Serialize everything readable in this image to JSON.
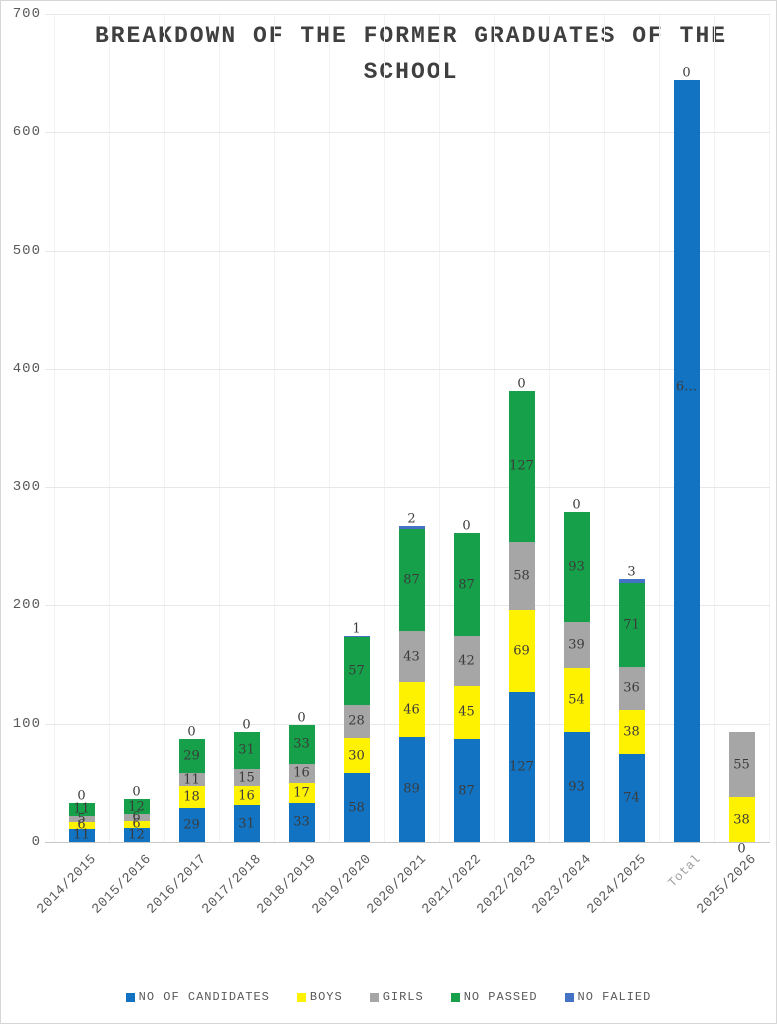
{
  "chart_data": {
    "type": "bar",
    "stacked": true,
    "title": "BREAKDOWN OF THE FORMER GRADUATES OF THE SCHOOL",
    "categories": [
      "2014/2015",
      "2015/2016",
      "2016/2017",
      "2017/2018",
      "2018/2019",
      "2019/2020",
      "2020/2021",
      "2021/2022",
      "2022/2023",
      "2023/2024",
      "2024/2025",
      "Total",
      "2025/2026"
    ],
    "series": [
      {
        "name": "NO OF CANDIDATES",
        "color": "#1173c2",
        "values": [
          11,
          12,
          29,
          31,
          33,
          58,
          89,
          87,
          127,
          93,
          74,
          644,
          0
        ],
        "labels": [
          "11",
          "12",
          "29",
          "31",
          "33",
          "58",
          "89",
          "87",
          "127",
          "93",
          "74",
          "6…",
          "0"
        ]
      },
      {
        "name": "BOYS",
        "color": "#fff200",
        "values": [
          6,
          6,
          18,
          16,
          17,
          30,
          46,
          45,
          69,
          54,
          38,
          0,
          38
        ],
        "labels": [
          "6",
          "6",
          "18",
          "16",
          "17",
          "30",
          "46",
          "45",
          "69",
          "54",
          "38",
          null,
          "38"
        ]
      },
      {
        "name": "GIRLS",
        "color": "#a6a6a6",
        "values": [
          5,
          6,
          11,
          15,
          16,
          28,
          43,
          42,
          58,
          39,
          36,
          0,
          55
        ],
        "labels": [
          "5",
          "6",
          "11",
          "15",
          "16",
          "28",
          "43",
          "42",
          "58",
          "39",
          "36",
          null,
          "55"
        ]
      },
      {
        "name": "NO PASSED",
        "color": "#16a04a",
        "values": [
          11,
          12,
          29,
          31,
          33,
          57,
          87,
          87,
          127,
          93,
          71,
          0,
          0
        ],
        "labels": [
          "11",
          "12",
          "29",
          "31",
          "33",
          "57",
          "87",
          "87",
          "127",
          "93",
          "71",
          null,
          null
        ]
      },
      {
        "name": "NO FALIED",
        "color": "#4472c4",
        "values": [
          0,
          0,
          0,
          0,
          0,
          1,
          2,
          0,
          0,
          0,
          3,
          0,
          0
        ],
        "labels": [
          "0",
          "0",
          "0",
          "0",
          "0",
          "1",
          "2",
          "0",
          "0",
          "0",
          "3",
          "0",
          null
        ]
      }
    ],
    "xlabel": "",
    "ylabel": "",
    "ylim": [
      0,
      700
    ],
    "yticks": [
      0,
      100,
      200,
      300,
      400,
      500,
      600,
      700
    ],
    "grid": true,
    "legend_position": "bottom",
    "layout_hints": {
      "total_category": "Total",
      "total_blue_label_value": 385,
      "muted_category": "Total"
    }
  }
}
